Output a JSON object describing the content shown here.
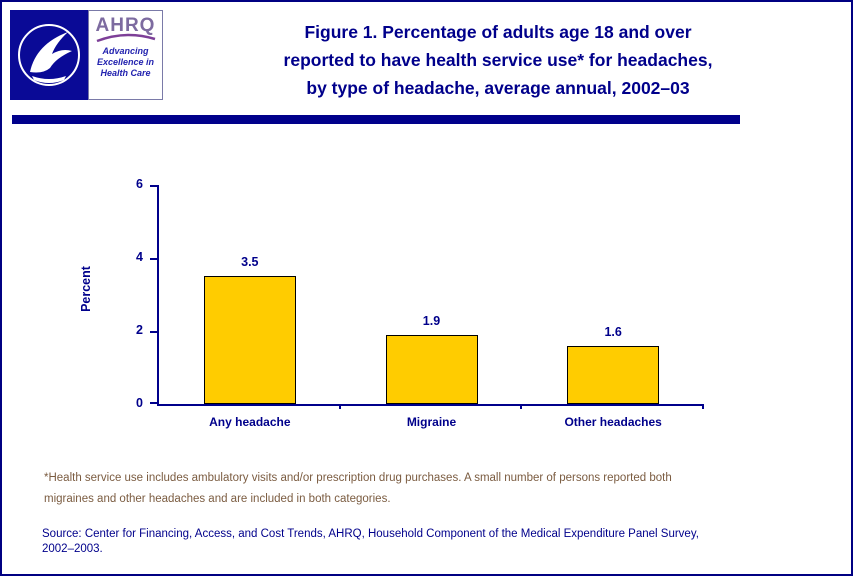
{
  "page": {
    "border_color": "#000082"
  },
  "header": {
    "title_lines": [
      "Figure 1. Percentage of adults age 18 and over",
      "reported to have health service use* for headaches,",
      "by type of headache, average annual, 2002–03"
    ],
    "ahrq_logo": {
      "acronym": "AHRQ",
      "tagline_lines": [
        "Advancing",
        "Excellence in",
        "Health Care"
      ]
    }
  },
  "chart_data": {
    "type": "bar",
    "categories": [
      "Any headache",
      "Migraine",
      "Other headaches"
    ],
    "values": [
      3.5,
      1.9,
      1.6
    ],
    "value_labels": [
      "3.5",
      "1.9",
      "1.6"
    ],
    "title": "",
    "xlabel": "",
    "ylabel": "Percent",
    "ylim": [
      0,
      6
    ],
    "yticks": [
      0,
      2,
      4,
      6
    ],
    "grid": false,
    "legend": "none",
    "bar_color": "#ffcc00",
    "bar_border_color": "#000000",
    "axis_color": "#00008b"
  },
  "footnote": {
    "lines": [
      "*Health service use includes ambulatory visits and/or prescription drug purchases. A small number of persons reported both",
      "migraines and other headaches and are included in both categories."
    ]
  },
  "source": {
    "lines": [
      "Source: Center for Financing, Access, and Cost Trends, AHRQ, Household Component of the Medical Expenditure Panel Survey,",
      "2002–2003."
    ]
  }
}
